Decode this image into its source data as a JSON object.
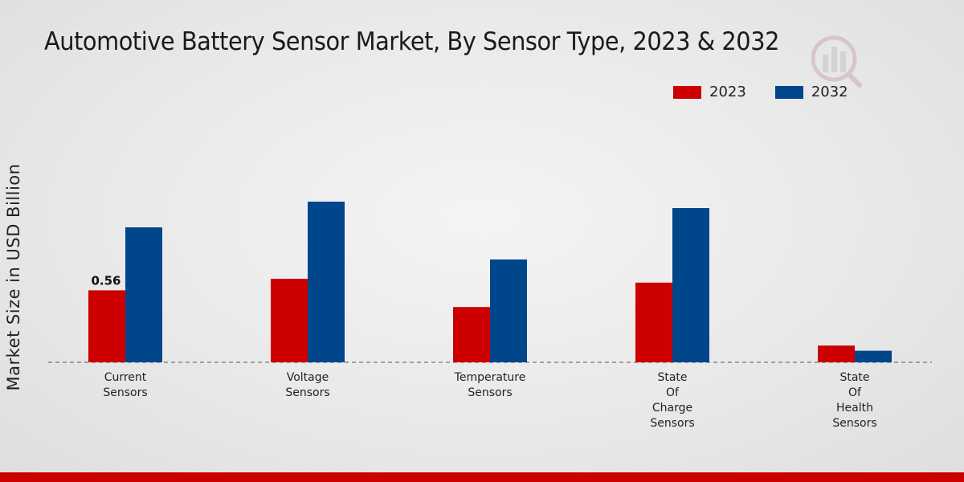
{
  "chart_data": {
    "type": "bar",
    "title": "Automotive Battery Sensor Market, By Sensor Type, 2023 & 2032",
    "xlabel": "",
    "ylabel": "Market Size in USD Billion",
    "categories": [
      [
        "Current",
        "Sensors"
      ],
      [
        "Voltage",
        "Sensors"
      ],
      [
        "Temperature",
        "Sensors"
      ],
      [
        "State",
        "Of",
        "Charge",
        "Sensors"
      ],
      [
        "State",
        "Of",
        "Health",
        "Sensors"
      ]
    ],
    "series": [
      {
        "name": "2023",
        "color": "#cc0000",
        "values": [
          0.56,
          0.65,
          0.43,
          0.62,
          0.13
        ]
      },
      {
        "name": "2032",
        "color": "#00468b",
        "values": [
          1.05,
          1.25,
          0.8,
          1.2,
          0.09
        ]
      }
    ],
    "data_labels": [
      {
        "series": 0,
        "index": 0,
        "text": "0.56"
      }
    ],
    "ylim": [
      0,
      1.6
    ],
    "grid": false,
    "legend_position": "top-right"
  }
}
